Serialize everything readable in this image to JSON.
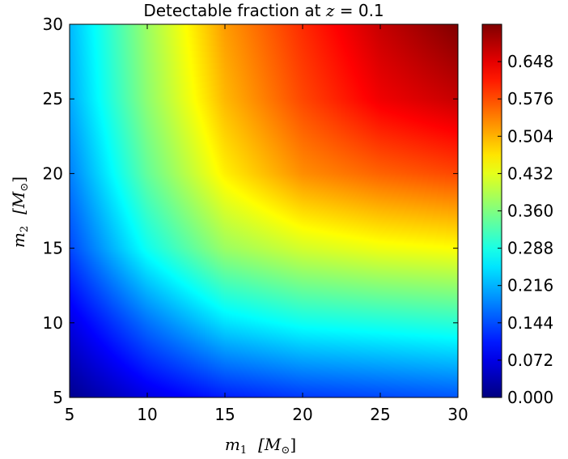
{
  "chart_data": {
    "type": "heatmap",
    "title": {
      "prefix": "Detectable fraction at ",
      "math_var": "z",
      "math_eq": " = 0.1"
    },
    "xlabel": {
      "var": "m",
      "sub": "1",
      "unit": "[M",
      "unit_sub": "⊙",
      "close": "]"
    },
    "ylabel": {
      "var": "m",
      "sub": "2",
      "unit": "[M",
      "unit_sub": "⊙",
      "close": "]"
    },
    "xlim": [
      5,
      30
    ],
    "ylim": [
      5,
      30
    ],
    "xticks": [
      "5",
      "10",
      "15",
      "20",
      "25",
      "30"
    ],
    "yticks": [
      "5",
      "10",
      "15",
      "20",
      "25",
      "30"
    ],
    "colorbar": {
      "colormap": "jet",
      "range": [
        0.0,
        0.72
      ],
      "ticks": [
        "0.000",
        "0.072",
        "0.144",
        "0.216",
        "0.288",
        "0.360",
        "0.432",
        "0.504",
        "0.576",
        "0.648"
      ]
    },
    "grid_m1": [
      5,
      10,
      15,
      20,
      25,
      30
    ],
    "grid_m2": [
      5,
      10,
      15,
      20,
      25,
      30
    ],
    "values": [
      [
        0.01,
        0.07,
        0.11,
        0.13,
        0.14,
        0.15
      ],
      [
        0.07,
        0.17,
        0.25,
        0.28,
        0.29,
        0.3
      ],
      [
        0.14,
        0.28,
        0.38,
        0.42,
        0.44,
        0.45
      ],
      [
        0.18,
        0.34,
        0.46,
        0.53,
        0.56,
        0.58
      ],
      [
        0.21,
        0.37,
        0.5,
        0.58,
        0.64,
        0.67
      ],
      [
        0.22,
        0.38,
        0.52,
        0.6,
        0.67,
        0.72
      ]
    ]
  }
}
